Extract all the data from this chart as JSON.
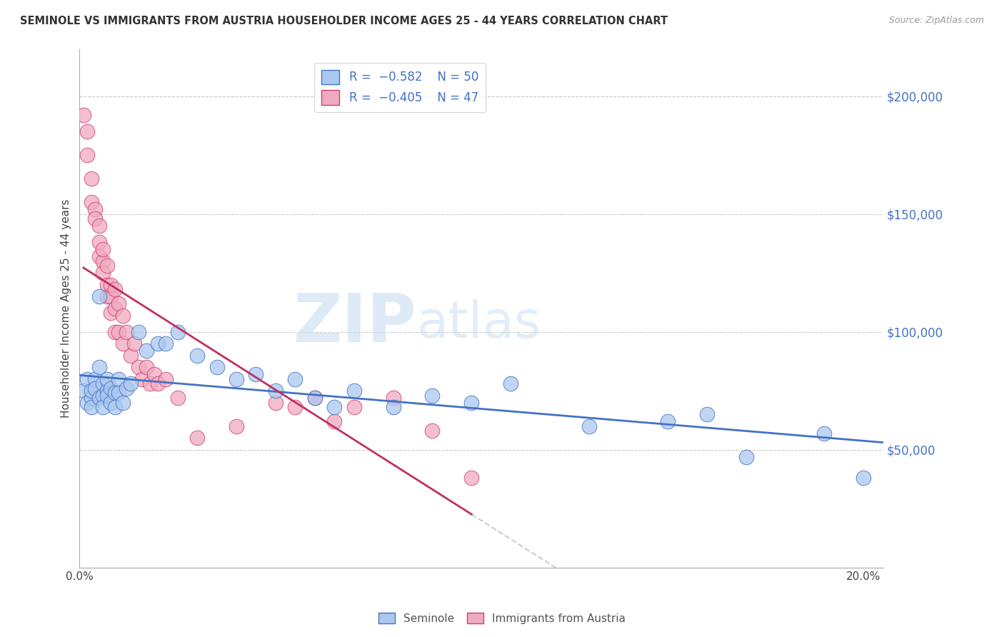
{
  "title": "SEMINOLE VS IMMIGRANTS FROM AUSTRIA HOUSEHOLDER INCOME AGES 25 - 44 YEARS CORRELATION CHART",
  "source": "Source: ZipAtlas.com",
  "ylabel": "Householder Income Ages 25 - 44 years",
  "ytick_labels": [
    "$50,000",
    "$100,000",
    "$150,000",
    "$200,000"
  ],
  "ytick_values": [
    50000,
    100000,
    150000,
    200000
  ],
  "ylim": [
    0,
    220000
  ],
  "xlim": [
    0.0,
    0.205
  ],
  "seminole_color": "#aac8f0",
  "austria_color": "#f0aac0",
  "seminole_edge_color": "#4472c4",
  "austria_edge_color": "#d04070",
  "seminole_line_color": "#4472c4",
  "austria_line_color": "#c03060",
  "grid_color": "#cccccc",
  "seminole_x": [
    0.001,
    0.002,
    0.002,
    0.003,
    0.003,
    0.003,
    0.004,
    0.004,
    0.005,
    0.005,
    0.005,
    0.006,
    0.006,
    0.006,
    0.007,
    0.007,
    0.007,
    0.008,
    0.008,
    0.009,
    0.009,
    0.01,
    0.01,
    0.011,
    0.012,
    0.013,
    0.015,
    0.017,
    0.02,
    0.022,
    0.025,
    0.03,
    0.035,
    0.04,
    0.045,
    0.05,
    0.055,
    0.06,
    0.065,
    0.07,
    0.08,
    0.09,
    0.1,
    0.11,
    0.13,
    0.15,
    0.16,
    0.17,
    0.19,
    0.2
  ],
  "seminole_y": [
    75000,
    80000,
    70000,
    72000,
    68000,
    75000,
    80000,
    76000,
    115000,
    85000,
    72000,
    78000,
    73000,
    68000,
    75000,
    80000,
    73000,
    76000,
    70000,
    74000,
    68000,
    80000,
    74000,
    70000,
    76000,
    78000,
    100000,
    92000,
    95000,
    95000,
    100000,
    90000,
    85000,
    80000,
    82000,
    75000,
    80000,
    72000,
    68000,
    75000,
    68000,
    73000,
    70000,
    78000,
    60000,
    62000,
    65000,
    47000,
    57000,
    38000
  ],
  "austria_x": [
    0.001,
    0.002,
    0.002,
    0.003,
    0.003,
    0.004,
    0.004,
    0.005,
    0.005,
    0.005,
    0.006,
    0.006,
    0.006,
    0.007,
    0.007,
    0.007,
    0.008,
    0.008,
    0.008,
    0.009,
    0.009,
    0.009,
    0.01,
    0.01,
    0.011,
    0.011,
    0.012,
    0.013,
    0.014,
    0.015,
    0.016,
    0.017,
    0.018,
    0.019,
    0.02,
    0.022,
    0.025,
    0.03,
    0.04,
    0.05,
    0.055,
    0.06,
    0.065,
    0.07,
    0.08,
    0.09,
    0.1
  ],
  "austria_y": [
    192000,
    185000,
    175000,
    165000,
    155000,
    152000,
    148000,
    145000,
    138000,
    132000,
    130000,
    125000,
    135000,
    120000,
    128000,
    115000,
    115000,
    108000,
    120000,
    110000,
    100000,
    118000,
    100000,
    112000,
    95000,
    107000,
    100000,
    90000,
    95000,
    85000,
    80000,
    85000,
    78000,
    82000,
    78000,
    80000,
    72000,
    55000,
    60000,
    70000,
    68000,
    72000,
    62000,
    68000,
    72000,
    58000,
    38000
  ]
}
